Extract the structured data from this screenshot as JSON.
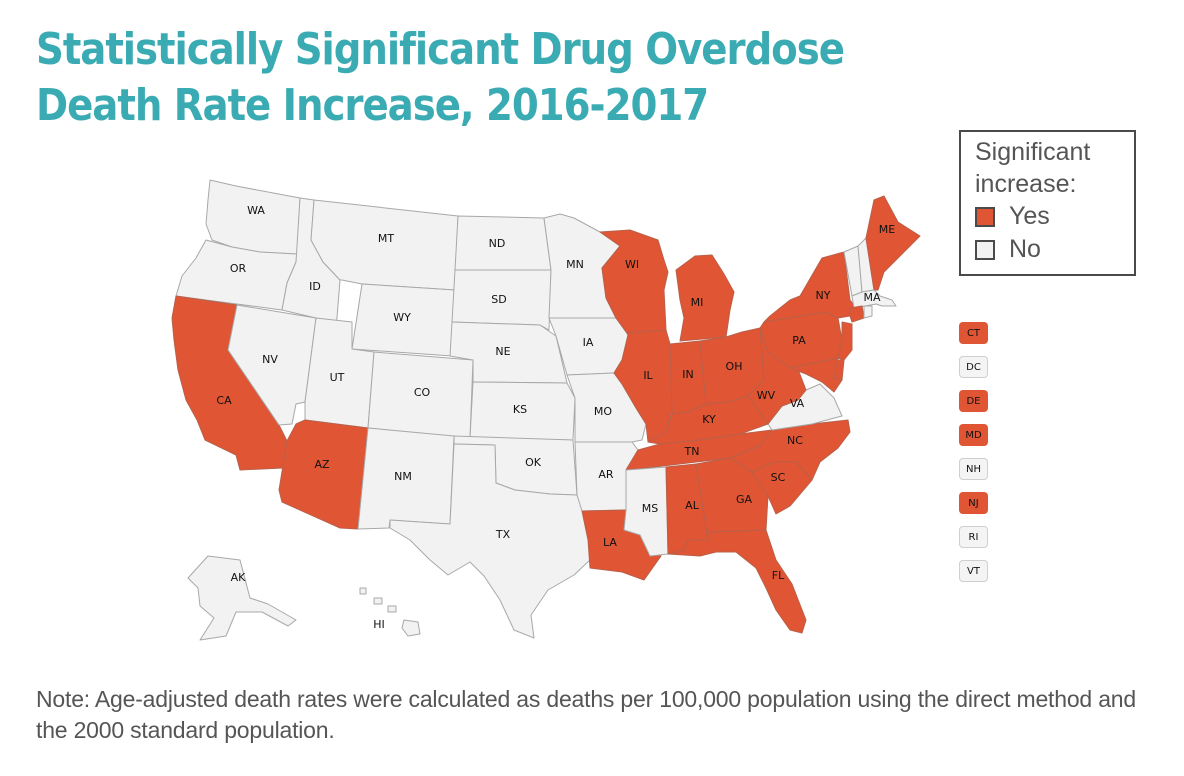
{
  "title": {
    "line1": "Statistically Significant Drug Overdose",
    "line2": "Death Rate Increase, 2016-2017"
  },
  "colors": {
    "title": "#3aabb3",
    "yes": "#e05533",
    "no": "#f2f2f2",
    "text": "#555555"
  },
  "legend": {
    "title_line1": "Significant",
    "title_line2": "increase:",
    "items": [
      {
        "label": "Yes",
        "status": "yes"
      },
      {
        "label": "No",
        "status": "no"
      }
    ]
  },
  "states": [
    {
      "abbr": "WA",
      "status": "no"
    },
    {
      "abbr": "OR",
      "status": "no"
    },
    {
      "abbr": "CA",
      "status": "yes"
    },
    {
      "abbr": "NV",
      "status": "no"
    },
    {
      "abbr": "ID",
      "status": "no"
    },
    {
      "abbr": "MT",
      "status": "no"
    },
    {
      "abbr": "WY",
      "status": "no"
    },
    {
      "abbr": "UT",
      "status": "no"
    },
    {
      "abbr": "AZ",
      "status": "yes"
    },
    {
      "abbr": "CO",
      "status": "no"
    },
    {
      "abbr": "NM",
      "status": "no"
    },
    {
      "abbr": "ND",
      "status": "no"
    },
    {
      "abbr": "SD",
      "status": "no"
    },
    {
      "abbr": "NE",
      "status": "no"
    },
    {
      "abbr": "KS",
      "status": "no"
    },
    {
      "abbr": "OK",
      "status": "no"
    },
    {
      "abbr": "TX",
      "status": "no"
    },
    {
      "abbr": "MN",
      "status": "no"
    },
    {
      "abbr": "IA",
      "status": "no"
    },
    {
      "abbr": "MO",
      "status": "no"
    },
    {
      "abbr": "AR",
      "status": "no"
    },
    {
      "abbr": "LA",
      "status": "yes"
    },
    {
      "abbr": "WI",
      "status": "yes"
    },
    {
      "abbr": "IL",
      "status": "yes"
    },
    {
      "abbr": "MI",
      "status": "yes"
    },
    {
      "abbr": "IN",
      "status": "yes"
    },
    {
      "abbr": "OH",
      "status": "yes"
    },
    {
      "abbr": "KY",
      "status": "yes"
    },
    {
      "abbr": "TN",
      "status": "yes"
    },
    {
      "abbr": "MS",
      "status": "no"
    },
    {
      "abbr": "AL",
      "status": "yes"
    },
    {
      "abbr": "GA",
      "status": "yes"
    },
    {
      "abbr": "FL",
      "status": "yes"
    },
    {
      "abbr": "SC",
      "status": "yes"
    },
    {
      "abbr": "NC",
      "status": "yes"
    },
    {
      "abbr": "VA",
      "status": "no"
    },
    {
      "abbr": "WV",
      "status": "yes"
    },
    {
      "abbr": "PA",
      "status": "yes"
    },
    {
      "abbr": "NY",
      "status": "yes"
    },
    {
      "abbr": "VT",
      "status": "no"
    },
    {
      "abbr": "NH",
      "status": "no"
    },
    {
      "abbr": "ME",
      "status": "yes"
    },
    {
      "abbr": "MA",
      "status": "no"
    },
    {
      "abbr": "CT",
      "status": "yes"
    },
    {
      "abbr": "RI",
      "status": "no"
    },
    {
      "abbr": "NJ",
      "status": "yes"
    },
    {
      "abbr": "DE",
      "status": "yes"
    },
    {
      "abbr": "MD",
      "status": "yes"
    },
    {
      "abbr": "AK",
      "status": "no"
    },
    {
      "abbr": "HI",
      "status": "no"
    }
  ],
  "small_states": [
    {
      "abbr": "CT",
      "status": "yes"
    },
    {
      "abbr": "DC",
      "status": "no"
    },
    {
      "abbr": "DE",
      "status": "yes"
    },
    {
      "abbr": "MD",
      "status": "yes"
    },
    {
      "abbr": "NH",
      "status": "no"
    },
    {
      "abbr": "NJ",
      "status": "yes"
    },
    {
      "abbr": "RI",
      "status": "no"
    },
    {
      "abbr": "VT",
      "status": "no"
    }
  ],
  "note": "Note: Age-adjusted death rates were calculated as deaths per 100,000 population using the direct method and the 2000 standard population."
}
